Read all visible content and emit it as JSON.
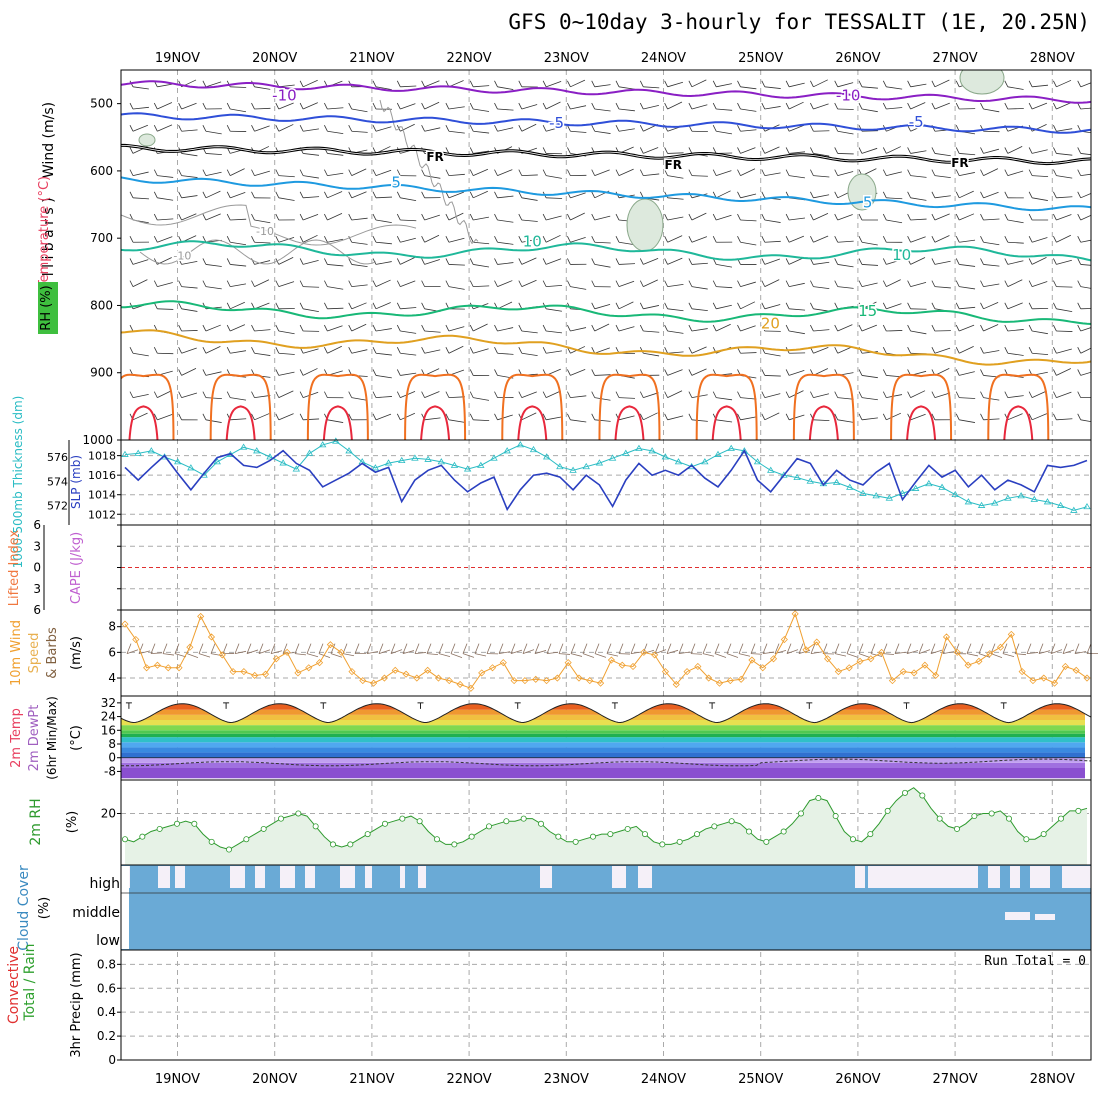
{
  "title": "GFS 0~10day 3-hourly for TESSALIT (1E, 20.25N)",
  "date_labels": [
    "19NOV",
    "20NOV",
    "21NOV",
    "22NOV",
    "23NOV",
    "24NOV",
    "25NOV",
    "26NOV",
    "27NOV",
    "28NOV"
  ],
  "run_total": "Run Total = 0",
  "colors": {
    "temp_m10": "#8a1fc4",
    "temp_m5": "#2f4fd8",
    "temp_fr": "#000000",
    "temp_5": "#1e9ae0",
    "temp_10": "#1fb89a",
    "temp_15": "#18b877",
    "temp_20": "#e0a020",
    "temp_25": "#f07020",
    "temp_30": "#e8283c",
    "rh": "#9a9a9a",
    "slp": "#2a3fc0",
    "thickness": "#2abcc4",
    "wind10": "#f0a030",
    "rh2m": "#2e9a2e",
    "rh2m_fill": "#e6f2e6",
    "cloud": "#6aaad6",
    "cloud_bg": "#f5f0f8"
  },
  "chart_data": [
    {
      "type": "contour",
      "id": "upper_air",
      "ylabel_parts": [
        "RH (%)",
        "Temperature (°C)",
        "Wind (m/s)"
      ],
      "axis_label": "( m i l l i b a r s )",
      "y_ticks": [
        500,
        600,
        700,
        800,
        900,
        1000
      ],
      "ylim": [
        450,
        1000
      ],
      "contour_labels": [
        {
          "text": "-10",
          "day": 1.1,
          "p": 488
        },
        {
          "text": "-10",
          "day": 6.9,
          "p": 488
        },
        {
          "text": "-5",
          "day": 3.9,
          "p": 529
        },
        {
          "text": "-5",
          "day": 7.6,
          "p": 527
        },
        {
          "text": "FR",
          "day": 2.65,
          "p": 578
        },
        {
          "text": "FR",
          "day": 5.1,
          "p": 590
        },
        {
          "text": "FR",
          "day": 8.05,
          "p": 587
        },
        {
          "text": "5",
          "day": 2.25,
          "p": 617
        },
        {
          "text": "5",
          "day": 7.1,
          "p": 647
        },
        {
          "text": "10",
          "day": 3.65,
          "p": 705
        },
        {
          "text": "10",
          "day": 7.45,
          "p": 725
        },
        {
          "text": "15",
          "day": 7.1,
          "p": 808
        },
        {
          "text": "20",
          "day": 6.1,
          "p": 827
        },
        {
          "text": "-10",
          "day": 0.9,
          "p": 688
        },
        {
          "text": "-10",
          "day": 0.05,
          "p": 724
        }
      ],
      "isotherms": [
        {
          "label": "-10",
          "base": 470,
          "drift": 25
        },
        {
          "label": "-5",
          "base": 518,
          "drift": 22
        },
        {
          "label": "FR",
          "base": 566,
          "drift": 20
        },
        {
          "label": "5",
          "base": 612,
          "drift": 45
        },
        {
          "label": "10",
          "base": 715,
          "drift": 10
        },
        {
          "label": "15",
          "base": 805,
          "drift": 12
        },
        {
          "label": "20",
          "base": 845,
          "drift": 35
        }
      ]
    },
    {
      "type": "line",
      "id": "thickness_slp",
      "ylabel_left": "1000-500mb Thickness (dm)",
      "ylabel_right": "SLP (mb)",
      "thickness_ticks": [
        576,
        574,
        572
      ],
      "slp_ticks": [
        1018,
        1016,
        1014,
        1012
      ],
      "thickness_range": [
        570.4,
        577.4
      ],
      "slp_range": [
        1010.9,
        1019.6
      ],
      "thickness": [
        576.2,
        576.3,
        576.5,
        576.0,
        575.6,
        575.1,
        574.5,
        575.6,
        576.2,
        576.8,
        576.5,
        576.0,
        575.5,
        575.0,
        576.3,
        577.0,
        577.3,
        576.5,
        575.6,
        575.1,
        575.5,
        575.7,
        575.9,
        575.8,
        575.6,
        575.3,
        575.0,
        575.3,
        575.9,
        576.5,
        577.0,
        576.6,
        576.0,
        575.2,
        574.9,
        575.2,
        575.5,
        575.9,
        576.3,
        576.7,
        576.5,
        576.0,
        575.6,
        575.2,
        575.6,
        576.2,
        576.7,
        576.5,
        575.6,
        574.9,
        574.5,
        574.3,
        574.0,
        573.8,
        573.9,
        573.5,
        573.0,
        572.8,
        572.6,
        573.0,
        573.4,
        573.8,
        573.5,
        572.9,
        572.3,
        572.0,
        572.2,
        572.6,
        572.8,
        572.5,
        572.3,
        572.0,
        571.6,
        571.9
      ],
      "slp": [
        1016.8,
        1015.5,
        1016.8,
        1018.0,
        1016.2,
        1014.5,
        1016.2,
        1017.8,
        1018.2,
        1017.0,
        1016.8,
        1017.5,
        1018.5,
        1017.2,
        1016.5,
        1014.8,
        1015.5,
        1016.2,
        1017.2,
        1016.3,
        1016.8,
        1013.3,
        1015.5,
        1016.5,
        1017.0,
        1015.5,
        1014.3,
        1015.2,
        1015.8,
        1012.5,
        1014.5,
        1016.0,
        1016.2,
        1015.8,
        1014.5,
        1016.0,
        1015.0,
        1012.8,
        1015.5,
        1017.2,
        1016.0,
        1016.5,
        1016.0,
        1017.0,
        1015.7,
        1014.8,
        1016.5,
        1018.5,
        1015.5,
        1014.3,
        1016.0,
        1017.7,
        1017.2,
        1015.0,
        1016.5,
        1015.5,
        1015.0,
        1016.3,
        1017.2,
        1013.5,
        1015.3,
        1017.0,
        1015.8,
        1016.5,
        1014.8,
        1016.0,
        1014.5,
        1015.5,
        1015.0,
        1014.3,
        1017.0,
        1016.8,
        1017.0,
        1017.5
      ]
    },
    {
      "type": "line",
      "id": "cape_li",
      "ylabel_left": "Lifted Index",
      "ylabel_right": "CAPE (J/kg)",
      "y_ticks": [
        -6,
        -3,
        0,
        3,
        6
      ],
      "tick_labels": [
        "6",
        "3",
        "0",
        "3",
        "6"
      ],
      "ylim": [
        -6,
        6
      ],
      "lifted_index_ref": 0
    },
    {
      "type": "line",
      "id": "wind10m",
      "ylabel_left": "10m Wind Speed & Barbs",
      "ylabel_right": "(m/s)",
      "y_ticks": [
        4,
        6,
        8
      ],
      "ylim": [
        2.6,
        9.3
      ],
      "values": [
        8.2,
        7.0,
        4.8,
        5.0,
        4.8,
        4.8,
        6.4,
        8.8,
        7.2,
        5.8,
        4.5,
        4.5,
        4.2,
        4.3,
        5.5,
        6.0,
        4.4,
        4.8,
        5.2,
        6.6,
        6.0,
        4.5,
        3.8,
        3.6,
        4.0,
        4.6,
        4.3,
        4.0,
        4.6,
        4.0,
        3.8,
        3.5,
        3.2,
        4.4,
        4.8,
        5.2,
        3.8,
        3.8,
        3.9,
        3.8,
        4.0,
        5.2,
        4.0,
        3.8,
        3.6,
        5.4,
        5.0,
        4.9,
        6.0,
        5.8,
        4.5,
        3.5,
        4.5,
        4.9,
        4.0,
        3.6,
        3.8,
        3.9,
        5.4,
        4.8,
        5.5,
        7.0,
        9.0,
        6.2,
        6.8,
        5.5,
        4.5,
        4.8,
        5.3,
        5.5,
        6.0,
        3.8,
        4.5,
        4.4,
        5.0,
        4.2,
        7.2,
        6.0,
        5.0,
        5.3,
        5.9,
        6.4,
        7.4,
        4.5,
        3.8,
        4.0,
        3.6,
        4.9,
        4.6,
        4.0
      ]
    },
    {
      "type": "area",
      "id": "temp2m",
      "ylabel_left": "2m Temp 2m DewPt (6hr Min/Max)",
      "ylabel_right": "(°C)",
      "y_ticks": [
        32,
        24,
        16,
        8,
        0,
        -8
      ],
      "ylim": [
        -13,
        36
      ],
      "temp_min": 20.5,
      "temp_max": 31.5,
      "dewpoint_base": -3.5
    },
    {
      "type": "area",
      "id": "rh2m",
      "ylabel_left": "2m RH",
      "ylabel_right": "(%)",
      "y_ticks": [
        20
      ],
      "ylim": [
        0,
        33
      ],
      "values": [
        10,
        9,
        11,
        13,
        14,
        15,
        16,
        17,
        16,
        12,
        9,
        7,
        6,
        8,
        10,
        12,
        14,
        16,
        18,
        19,
        20,
        19,
        15,
        11,
        8,
        7,
        8,
        10,
        12,
        14,
        16,
        17,
        18,
        19,
        17,
        13,
        10,
        8,
        8,
        9,
        11,
        13,
        15,
        16,
        17,
        17,
        18,
        18,
        16,
        13,
        11,
        9,
        9,
        10,
        11,
        12,
        12,
        13,
        14,
        15,
        12,
        9,
        8,
        8,
        9,
        10,
        12,
        14,
        15,
        16,
        17,
        16,
        13,
        10,
        9,
        11,
        13,
        16,
        20,
        25,
        26,
        25,
        19,
        13,
        10,
        9,
        12,
        16,
        21,
        25,
        28,
        30,
        27,
        22,
        18,
        15,
        14,
        16,
        19,
        20,
        20,
        21,
        18,
        13,
        10,
        10,
        12,
        15,
        18,
        21,
        21,
        22
      ]
    },
    {
      "type": "heatmap",
      "id": "cloud",
      "ylabel_left": "Cloud Cover",
      "ylabel_right": "(%)",
      "row_labels": [
        "high",
        "middle",
        "low"
      ],
      "high_cover": [
        0,
        0,
        0,
        0,
        0,
        0,
        0,
        0,
        0,
        0,
        0,
        0,
        0,
        0,
        0,
        0,
        0,
        0,
        0,
        0,
        0,
        0,
        0,
        0,
        0,
        0,
        0,
        0,
        0,
        0,
        0,
        0,
        0,
        0,
        0,
        0,
        0,
        0,
        0,
        0,
        0,
        0,
        0,
        0,
        0,
        0,
        0,
        0,
        0,
        0,
        0,
        0,
        0,
        0,
        0,
        0,
        0,
        0,
        0,
        0,
        0,
        0,
        0,
        0,
        0,
        0,
        0,
        0,
        0,
        0,
        0,
        0,
        0,
        0,
        0,
        0,
        0,
        0,
        0,
        0,
        0,
        0,
        0,
        0,
        0,
        0,
        0,
        0,
        0,
        0,
        0,
        0,
        0,
        0,
        0,
        0,
        0,
        0,
        0,
        0,
        0,
        0,
        0,
        0,
        0,
        0,
        0,
        0,
        0,
        0,
        0,
        0,
        0,
        0,
        0,
        0,
        0,
        0,
        0,
        0
      ]
    },
    {
      "type": "bar",
      "id": "precip",
      "ylabel_left_1": "Total / Rain",
      "ylabel_left_2": "Convective",
      "ylabel_right": "3hr Precip (mm)",
      "y_ticks": [
        0,
        0.2,
        0.4,
        0.6,
        0.8
      ],
      "tick_labels": [
        "0",
        "0.2",
        "0.4",
        "0.6",
        "0.8"
      ],
      "ylim": [
        0,
        0.92
      ],
      "values": []
    }
  ]
}
